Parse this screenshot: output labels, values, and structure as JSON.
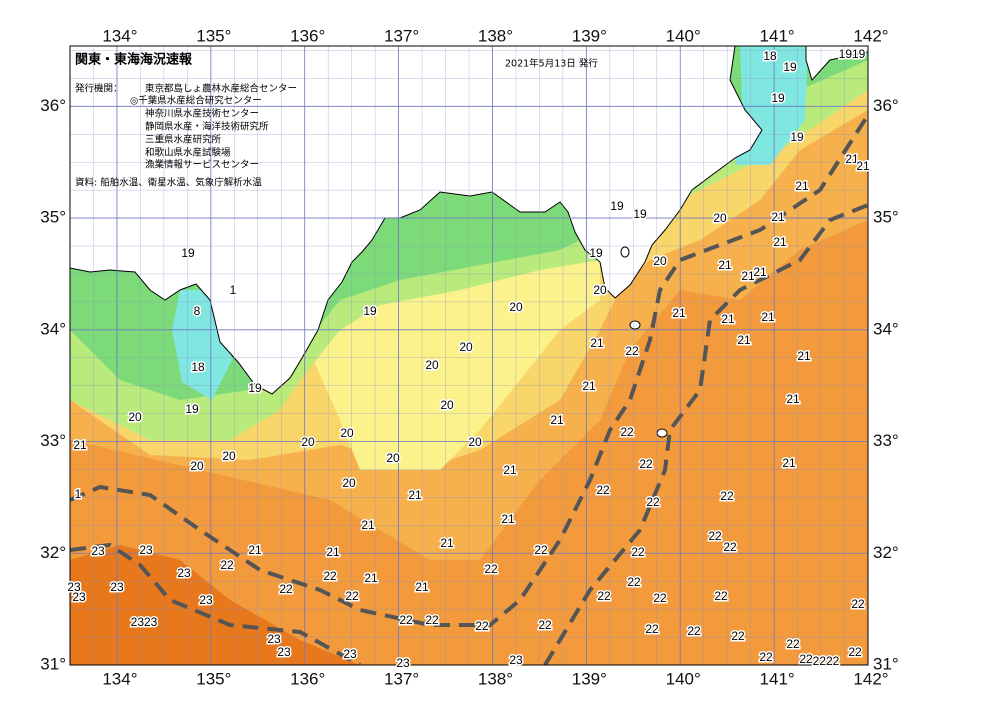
{
  "map": {
    "title": "関東・東海海況速報",
    "date": "2021年5月13日 発行",
    "issuer_label": "発行機関：",
    "issuers": [
      "東京都島しょ農林水産総合センター",
      "◎千葉県水産総合研究センター",
      "神奈川県水産技術センター",
      "静岡県水産・海洋技術研究所",
      "三重県水産研究所",
      "和歌山県水産試験場",
      "漁業情報サービスセンター"
    ],
    "source": "資料: 船舶水温、衛星水温、気象庁解析水温",
    "lon_range": [
      133.5,
      142
    ],
    "lat_range": [
      31,
      36.54
    ],
    "lon_ticks": [
      {
        "value": 134,
        "label": "134°"
      },
      {
        "value": 135,
        "label": "135°"
      },
      {
        "value": 136,
        "label": "136°"
      },
      {
        "value": 137,
        "label": "137°"
      },
      {
        "value": 138,
        "label": "138°"
      },
      {
        "value": 139,
        "label": "139°"
      },
      {
        "value": 140,
        "label": "140°"
      },
      {
        "value": 141,
        "label": "141°"
      },
      {
        "value": 142,
        "label": "142°"
      }
    ],
    "lat_ticks": [
      {
        "value": 31,
        "label": "31°"
      },
      {
        "value": 32,
        "label": "32°"
      },
      {
        "value": 33,
        "label": "33°"
      },
      {
        "value": 34,
        "label": "34°"
      },
      {
        "value": 35,
        "label": "35°"
      },
      {
        "value": 36,
        "label": "36°"
      }
    ],
    "contour_labels": [
      "18",
      "19",
      "1919",
      "19",
      "19",
      "21",
      "21",
      "21",
      "19",
      "19",
      "20",
      "21",
      "21",
      "19",
      "20",
      "21",
      "21",
      "21",
      "20",
      "19",
      "1",
      "8",
      "20",
      "19",
      "21",
      "21",
      "21",
      "20",
      "21",
      "22",
      "21",
      "21",
      "18",
      "20",
      "19",
      "21",
      "19",
      "20",
      "21",
      "20",
      "21",
      "20",
      "22",
      "21",
      "20",
      "20",
      "20",
      "20",
      "22",
      "21",
      "20",
      "21",
      "20",
      "1",
      "22",
      "21",
      "22",
      "22",
      "21",
      "21",
      "22",
      "23",
      "23",
      "21",
      "21",
      "21",
      "22",
      "22",
      "22",
      "22",
      "23",
      "22",
      "21",
      "22",
      "22",
      "23",
      "23",
      "23",
      "23",
      "22",
      "21",
      "22",
      "22",
      "22",
      "22",
      "22",
      "2323",
      "22",
      "22",
      "22",
      "22",
      "22",
      "22",
      "23",
      "23",
      "22",
      "22",
      "23",
      "22",
      "22",
      "2222",
      "22",
      "23",
      "23"
    ]
  }
}
